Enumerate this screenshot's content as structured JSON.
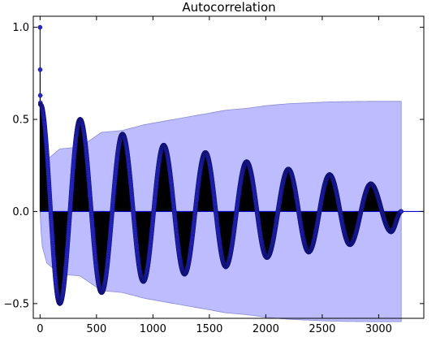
{
  "chart_data": {
    "type": "stem",
    "title": "Autocorrelation",
    "xlabel": "",
    "ylabel": "",
    "xlim": [
      -60,
      3400
    ],
    "ylim": [
      -0.58,
      1.06
    ],
    "xticks": [
      0,
      500,
      1000,
      1500,
      2000,
      2500,
      3000
    ],
    "xtick_labels": [
      "0",
      "500",
      "1000",
      "1500",
      "2000",
      "2500",
      "3000"
    ],
    "yticks": [
      -0.5,
      0.0,
      0.5,
      1.0
    ],
    "ytick_labels": [
      "−0.5",
      "0.0",
      "0.5",
      "1.0"
    ],
    "grid": false,
    "n_lags": 3200,
    "initial_lags": [
      {
        "lag": 0,
        "acf": 1.0
      },
      {
        "lag": 1,
        "acf": 0.77
      },
      {
        "lag": 2,
        "acf": 0.63
      },
      {
        "lag": 3,
        "acf": 0.59
      },
      {
        "lag": 4,
        "acf": 0.58
      }
    ],
    "peaks": [
      {
        "lag": 5,
        "acf": 0.58
      },
      {
        "lag": 175,
        "acf": -0.5
      },
      {
        "lag": 355,
        "acf": 0.5
      },
      {
        "lag": 545,
        "acf": -0.44
      },
      {
        "lag": 730,
        "acf": 0.42
      },
      {
        "lag": 915,
        "acf": -0.38
      },
      {
        "lag": 1095,
        "acf": 0.36
      },
      {
        "lag": 1280,
        "acf": -0.34
      },
      {
        "lag": 1465,
        "acf": 0.32
      },
      {
        "lag": 1645,
        "acf": -0.3
      },
      {
        "lag": 1830,
        "acf": 0.27
      },
      {
        "lag": 2010,
        "acf": -0.25
      },
      {
        "lag": 2200,
        "acf": 0.23
      },
      {
        "lag": 2380,
        "acf": -0.22
      },
      {
        "lag": 2565,
        "acf": 0.2
      },
      {
        "lag": 2745,
        "acf": -0.18
      },
      {
        "lag": 2930,
        "acf": 0.15
      },
      {
        "lag": 3110,
        "acf": -0.11
      },
      {
        "lag": 3200,
        "acf": 0.0
      }
    ],
    "confidence_band": [
      {
        "lag": 0,
        "upper": 0.0
      },
      {
        "lag": 15,
        "upper": 0.18
      },
      {
        "lag": 60,
        "upper": 0.28
      },
      {
        "lag": 175,
        "upper": 0.34
      },
      {
        "lag": 355,
        "upper": 0.35
      },
      {
        "lag": 545,
        "upper": 0.43
      },
      {
        "lag": 730,
        "upper": 0.44
      },
      {
        "lag": 915,
        "upper": 0.47
      },
      {
        "lag": 1095,
        "upper": 0.49
      },
      {
        "lag": 1280,
        "upper": 0.51
      },
      {
        "lag": 1465,
        "upper": 0.53
      },
      {
        "lag": 1645,
        "upper": 0.55
      },
      {
        "lag": 1830,
        "upper": 0.56
      },
      {
        "lag": 2010,
        "upper": 0.575
      },
      {
        "lag": 2200,
        "upper": 0.585
      },
      {
        "lag": 2380,
        "upper": 0.59
      },
      {
        "lag": 2565,
        "upper": 0.595
      },
      {
        "lag": 2745,
        "upper": 0.597
      },
      {
        "lag": 2930,
        "upper": 0.598
      },
      {
        "lag": 3200,
        "upper": 0.598
      }
    ],
    "colors": {
      "band": "#bcbcff",
      "band_edge": "#8a8ad8",
      "stem": "#000000",
      "marker": "#2828d0",
      "zero_line": "#0000cc"
    }
  }
}
